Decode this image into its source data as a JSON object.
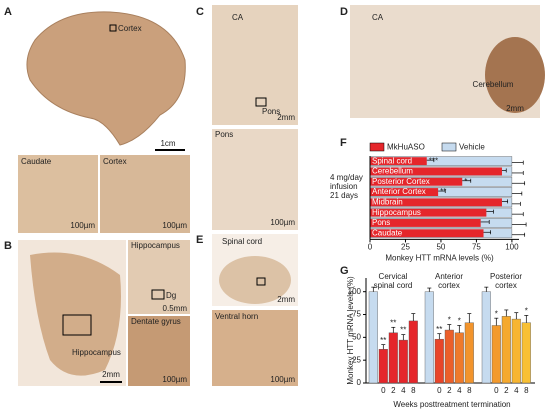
{
  "panel_letters": [
    "A",
    "B",
    "C",
    "D",
    "E",
    "F",
    "G"
  ],
  "images": [
    {
      "label": "Cortex",
      "scale": "1cm"
    },
    {
      "label": "Caudate",
      "scale": "100µm"
    },
    {
      "label": "Cortex",
      "scale": "100µm"
    },
    {
      "label": "Hippocampus",
      "scale": "2mm"
    },
    {
      "label": "Hippocampus",
      "inset": "Dg",
      "scale": "0.5mm"
    },
    {
      "label": "Dentate gyrus",
      "scale": "100µm"
    },
    {
      "label": "CA",
      "inset": "Pons",
      "scale": "2mm"
    },
    {
      "label": "Pons",
      "scale": "100µm"
    },
    {
      "label": "CA",
      "inset": "Cerebellum",
      "scale": "2mm"
    },
    {
      "label": "Spinal cord",
      "scale": "2mm"
    },
    {
      "label": "Ventral horn",
      "scale": "100µm"
    }
  ],
  "chart_data": [
    {
      "type": "barh",
      "categories": [
        "Spinal cord",
        "Cerebellum",
        "Posterior Cortex",
        "Anterior Cortex",
        "Midbrain",
        "Hippocampus",
        "Pons",
        "Caudate"
      ],
      "series": [
        {
          "name": "MkHuASO",
          "color": "#e5262b",
          "values": [
            40,
            93,
            65,
            48,
            93,
            82,
            78,
            80
          ],
          "errors": [
            5,
            3,
            6,
            5,
            4,
            5,
            6,
            5
          ]
        },
        {
          "name": "Vehicle",
          "color": "#c6dbef",
          "values": [
            100,
            100,
            100,
            100,
            100,
            100,
            100,
            100
          ],
          "errors": [
            8,
            8,
            9,
            7,
            6,
            8,
            10,
            9
          ]
        }
      ],
      "annotations": [
        {
          "category": 0,
          "text": "***"
        },
        {
          "category": 2,
          "text": "*"
        },
        {
          "category": 3,
          "text": "**"
        }
      ],
      "side_text": [
        "4 mg/day",
        "infusion",
        "21 days"
      ],
      "xlabel": "Monkey HTT mRNA levels (%)",
      "xlim": [
        0,
        105
      ],
      "xticks": [
        0,
        25,
        50,
        75,
        100
      ]
    },
    {
      "type": "bar",
      "groups": [
        [
          "Cervical",
          "spinal cord"
        ],
        [
          "Anterior",
          "cortex"
        ],
        [
          "Posterior",
          "cortex"
        ]
      ],
      "weeks": [
        "0",
        "2",
        "4",
        "8"
      ],
      "vehicle_color": "#c6dbef",
      "vehicle_values": [
        100,
        100,
        100
      ],
      "vehicle_errors": [
        5,
        4,
        5
      ],
      "values": [
        [
          37,
          55,
          47,
          68
        ],
        [
          48,
          58,
          55,
          66
        ],
        [
          63,
          73,
          70,
          66
        ]
      ],
      "errors": [
        [
          5,
          6,
          6,
          8
        ],
        [
          6,
          6,
          8,
          10
        ],
        [
          8,
          7,
          7,
          8
        ]
      ],
      "colors": [
        [
          "#e5262b",
          "#e5262b",
          "#e5262b",
          "#e5262b"
        ],
        [
          "#e8452a",
          "#ec5f2a",
          "#ef7a2b",
          "#f2942c"
        ],
        [
          "#f39a2c",
          "#f5a92e",
          "#f7b531",
          "#f8c034"
        ]
      ],
      "stars": [
        {
          "group": 0,
          "bar": 0,
          "text": "**"
        },
        {
          "group": 0,
          "bar": 1,
          "text": "**"
        },
        {
          "group": 0,
          "bar": 2,
          "text": "**"
        },
        {
          "group": 1,
          "bar": 0,
          "text": "**"
        },
        {
          "group": 1,
          "bar": 1,
          "text": "*"
        },
        {
          "group": 1,
          "bar": 2,
          "text": "*"
        },
        {
          "group": 2,
          "bar": 0,
          "text": "*"
        },
        {
          "group": 2,
          "bar": 3,
          "text": "*"
        }
      ],
      "ylabel": "Monkey HTT mRNA levels (%)",
      "xlabel": "Weeks posttreatment termination",
      "ylim": [
        0,
        115
      ],
      "yticks": [
        0,
        25,
        50,
        75,
        100
      ]
    }
  ]
}
